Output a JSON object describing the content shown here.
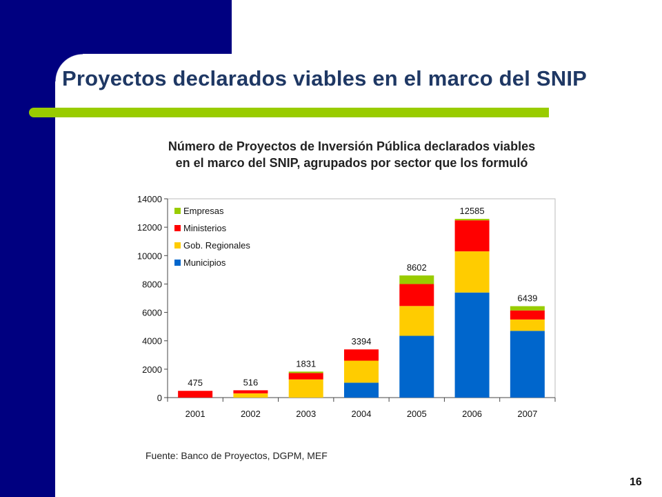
{
  "slide": {
    "title": "Proyectos declarados viables en el marco del SNIP",
    "page_number": "16",
    "source": "Fuente: Banco de Proyectos, DGPM, MEF",
    "colors": {
      "navy": "#000080",
      "accent_green": "#99CC00",
      "title_blue": "#1F3864"
    }
  },
  "chart_data": {
    "type": "bar",
    "stacked": true,
    "title": "Número de Proyectos de Inversión Pública declarados viables",
    "subtitle": "en el marco del SNIP, agrupados por sector que los formuló",
    "xlabel": "",
    "ylabel": "",
    "ylim": [
      0,
      14000
    ],
    "yticks": [
      "0",
      "2000",
      "4000",
      "6000",
      "8000",
      "10000",
      "12000",
      "14000"
    ],
    "grid": false,
    "legend_position": "top-left",
    "categories": [
      "2001",
      "2002",
      "2003",
      "2004",
      "2005",
      "2006",
      "2007"
    ],
    "totals": [
      "475",
      "516",
      "1831",
      "3394",
      "8602",
      "12585",
      "6439"
    ],
    "series": [
      {
        "name": "Municipios",
        "color": "#0066CC",
        "values": [
          0,
          0,
          0,
          1050,
          4350,
          7400,
          4700
        ]
      },
      {
        "name": "Gob. Regionales",
        "color": "#FFCC00",
        "values": [
          0,
          300,
          1280,
          1550,
          2100,
          2900,
          800
        ]
      },
      {
        "name": "Ministerios",
        "color": "#FF0000",
        "values": [
          475,
          216,
          451,
          794,
          1550,
          2185,
          639
        ]
      },
      {
        "name": "Empresas",
        "color": "#99CC00",
        "values": [
          0,
          0,
          100,
          0,
          602,
          100,
          300
        ]
      }
    ],
    "legend_order": [
      "Empresas",
      "Ministerios",
      "Gob. Regionales",
      "Municipios"
    ]
  }
}
